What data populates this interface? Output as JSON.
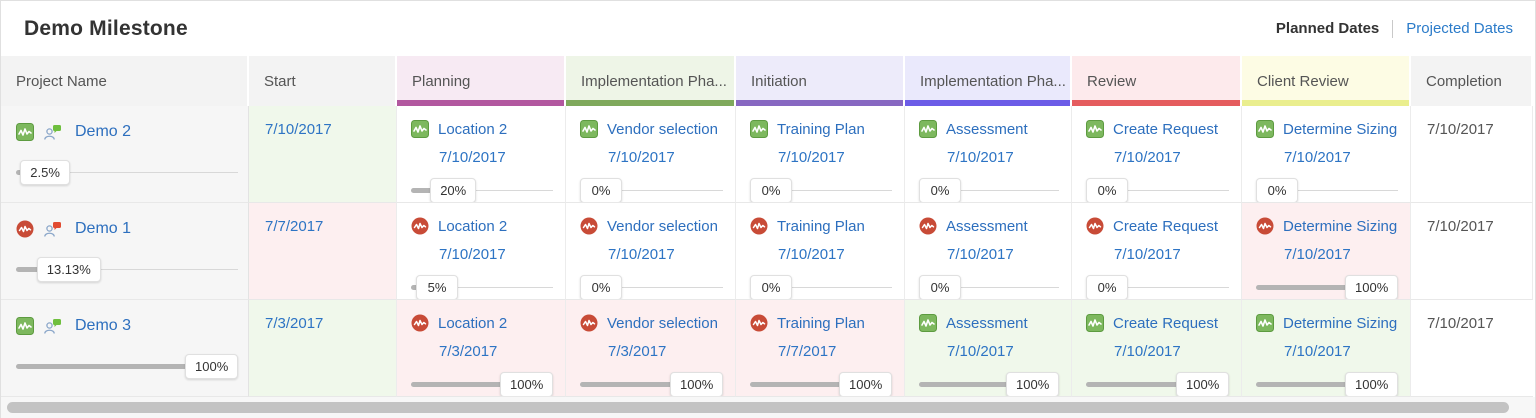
{
  "header": {
    "title": "Demo Milestone",
    "planned_label": "Planned Dates",
    "projected_label": "Projected Dates"
  },
  "colors": {
    "link_blue": "#2d6fbe",
    "date_blue": "#2d74c4",
    "health_green": "#77b554",
    "health_red": "#c84b37",
    "badge_green": "#6fbf3e",
    "badge_red": "#e14b31",
    "phase_bars": {
      "planning": "#b2579f",
      "implementation1": "#7fa95c",
      "initiation": "#8767c1",
      "implementation2": "#6c5ce7",
      "review": "#e55c5e",
      "client_review": "#eaee8e"
    }
  },
  "columns": [
    {
      "label": "Project Name",
      "bg": "#f3f3f3",
      "bar": ""
    },
    {
      "label": "Start",
      "bg": "#f3f3f3",
      "bar": ""
    },
    {
      "label": "Planning",
      "bg": "#f7eaf3",
      "bar": "#b2579f"
    },
    {
      "label": "Implementation Pha...",
      "bg": "#eef5e7",
      "bar": "#7fa95c"
    },
    {
      "label": "Initiation",
      "bg": "#edebfa",
      "bar": "#8767c1"
    },
    {
      "label": "Implementation Pha...",
      "bg": "#eae9fc",
      "bar": "#6c5ce7"
    },
    {
      "label": "Review",
      "bg": "#fdeaec",
      "bar": "#e55c5e"
    },
    {
      "label": "Client Review",
      "bg": "#fdfce4",
      "bar": "#eaee8e"
    },
    {
      "label": "Completion",
      "bg": "#f3f3f3",
      "bar": ""
    }
  ],
  "rows": [
    {
      "project": {
        "name": "Demo 2",
        "health": "green",
        "progress": "2.5%"
      },
      "start": {
        "date": "7/10/2017",
        "tone": "green"
      },
      "cells": [
        {
          "task": "Location 2",
          "date": "7/10/2017",
          "progress": "20%",
          "health": "green",
          "tone": "white"
        },
        {
          "task": "Vendor selection",
          "date": "7/10/2017",
          "progress": "0%",
          "health": "green",
          "tone": "white"
        },
        {
          "task": "Training Plan",
          "date": "7/10/2017",
          "progress": "0%",
          "health": "green",
          "tone": "white"
        },
        {
          "task": "Assessment",
          "date": "7/10/2017",
          "progress": "0%",
          "health": "green",
          "tone": "white"
        },
        {
          "task": "Create Request",
          "date": "7/10/2017",
          "progress": "0%",
          "health": "green",
          "tone": "white"
        },
        {
          "task": "Determine Sizing",
          "date": "7/10/2017",
          "progress": "0%",
          "health": "green",
          "tone": "white"
        }
      ],
      "completion": "7/10/2017"
    },
    {
      "project": {
        "name": "Demo 1",
        "health": "red",
        "progress": "13.13%"
      },
      "start": {
        "date": "7/7/2017",
        "tone": "pink"
      },
      "cells": [
        {
          "task": "Location 2",
          "date": "7/10/2017",
          "progress": "5%",
          "health": "red",
          "tone": "white"
        },
        {
          "task": "Vendor selection",
          "date": "7/10/2017",
          "progress": "0%",
          "health": "red",
          "tone": "white"
        },
        {
          "task": "Training Plan",
          "date": "7/10/2017",
          "progress": "0%",
          "health": "red",
          "tone": "white"
        },
        {
          "task": "Assessment",
          "date": "7/10/2017",
          "progress": "0%",
          "health": "red",
          "tone": "white"
        },
        {
          "task": "Create Request",
          "date": "7/10/2017",
          "progress": "0%",
          "health": "red",
          "tone": "white"
        },
        {
          "task": "Determine Sizing",
          "date": "7/10/2017",
          "progress": "100%",
          "health": "red",
          "tone": "pink"
        }
      ],
      "completion": "7/10/2017"
    },
    {
      "project": {
        "name": "Demo 3",
        "health": "green",
        "progress": "100%"
      },
      "start": {
        "date": "7/3/2017",
        "tone": "green"
      },
      "cells": [
        {
          "task": "Location 2",
          "date": "7/3/2017",
          "progress": "100%",
          "health": "red",
          "tone": "pink"
        },
        {
          "task": "Vendor selection",
          "date": "7/3/2017",
          "progress": "100%",
          "health": "red",
          "tone": "pink"
        },
        {
          "task": "Training Plan",
          "date": "7/7/2017",
          "progress": "100%",
          "health": "red",
          "tone": "pink"
        },
        {
          "task": "Assessment",
          "date": "7/10/2017",
          "progress": "100%",
          "health": "green",
          "tone": "green"
        },
        {
          "task": "Create Request",
          "date": "7/10/2017",
          "progress": "100%",
          "health": "green",
          "tone": "green"
        },
        {
          "task": "Determine Sizing",
          "date": "7/10/2017",
          "progress": "100%",
          "health": "green",
          "tone": "green"
        }
      ],
      "completion": "7/10/2017"
    }
  ]
}
